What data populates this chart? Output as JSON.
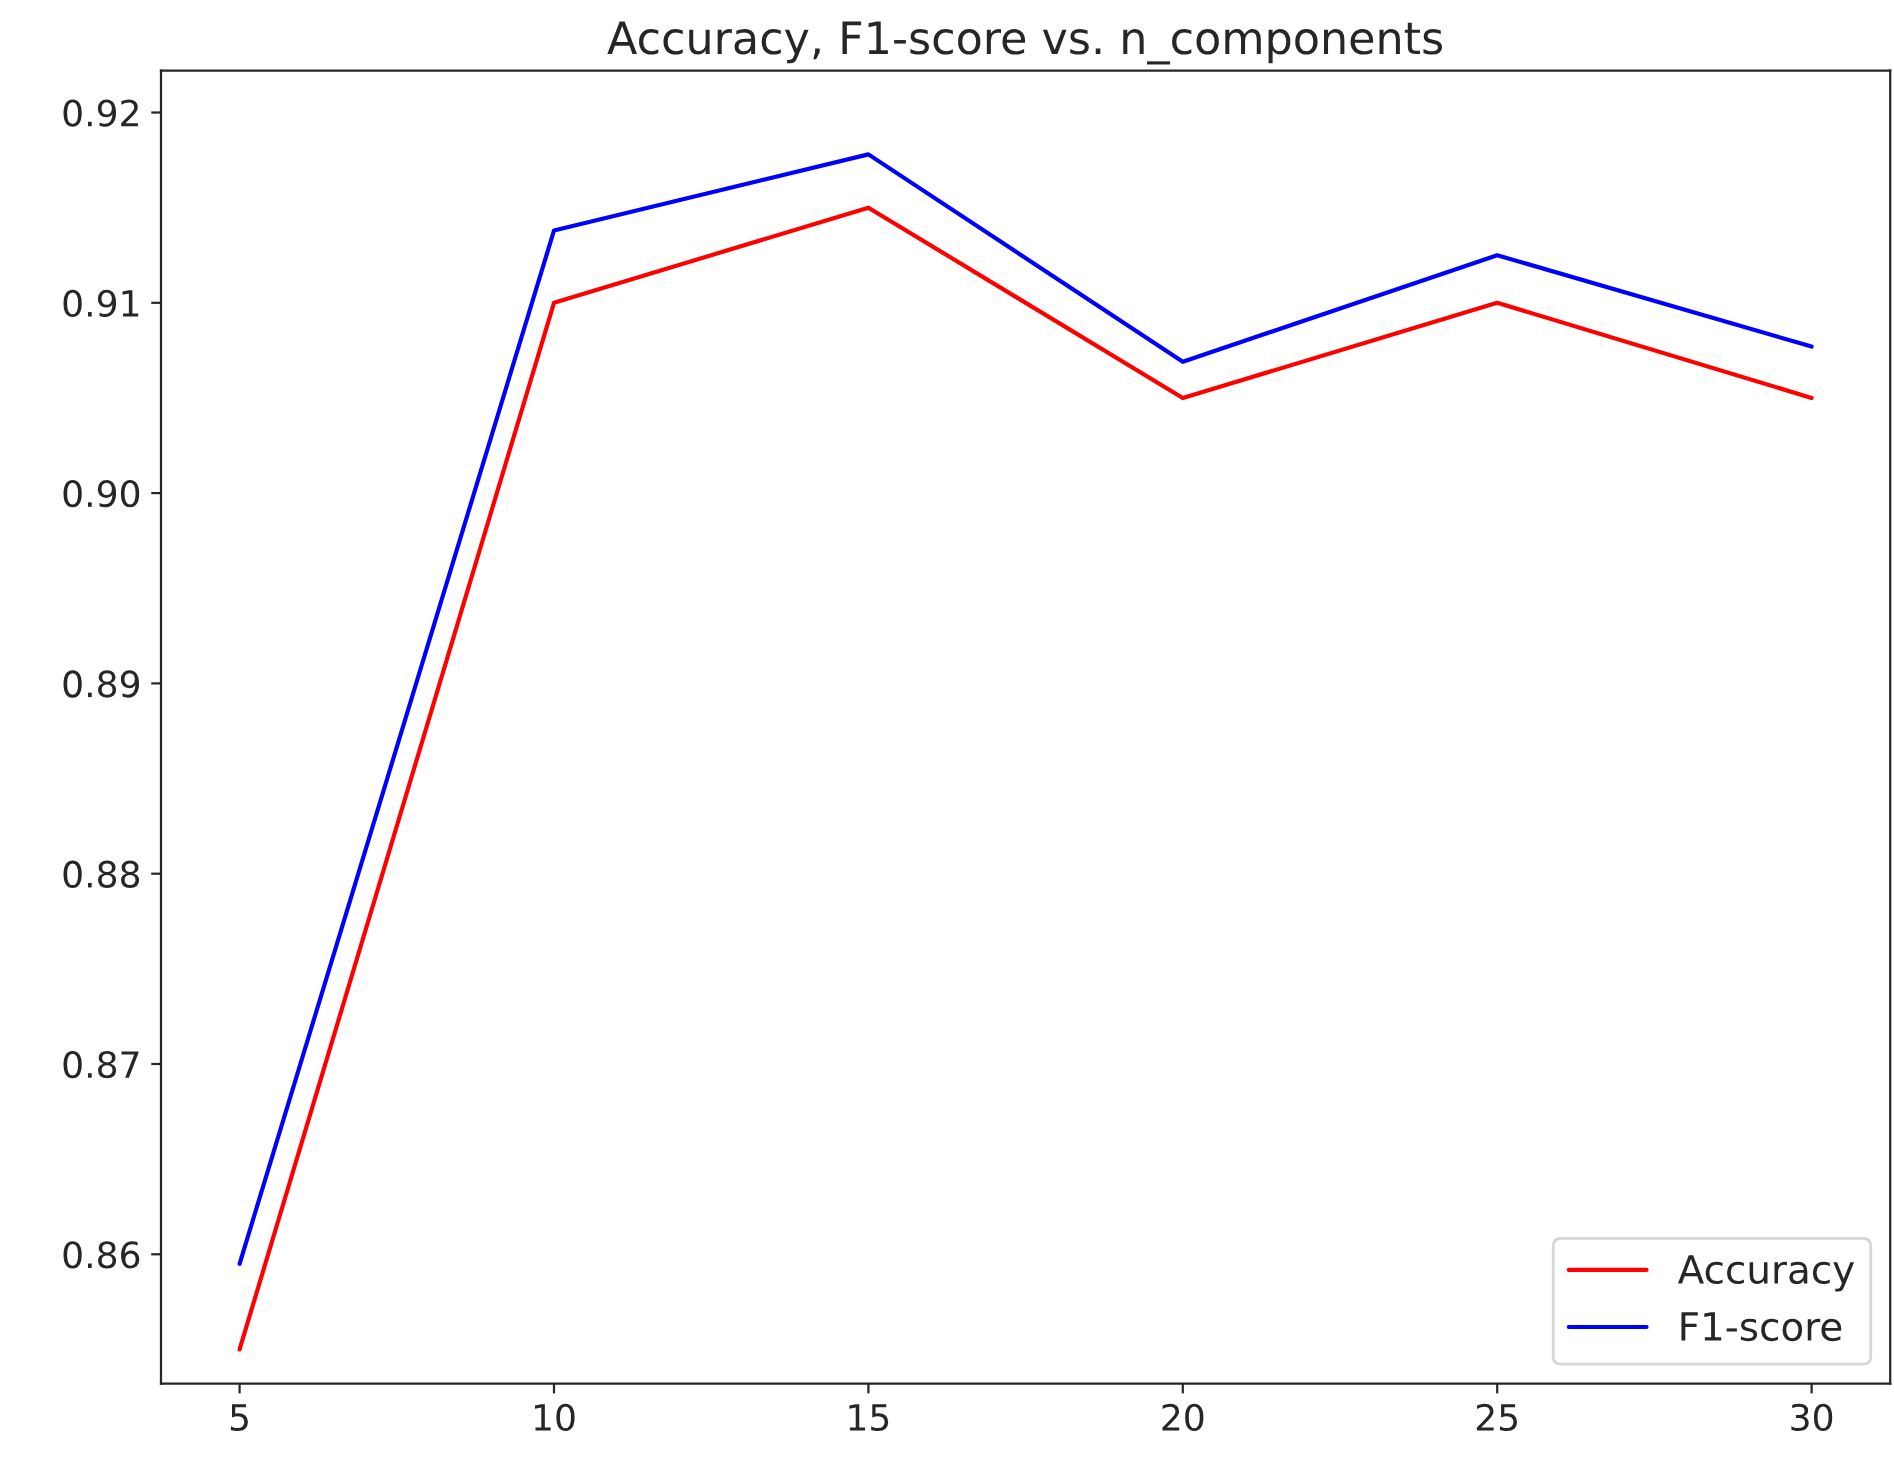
{
  "chart_data": {
    "type": "line",
    "title": "Accuracy, F1-score vs. n_components",
    "x": [
      5,
      10,
      15,
      20,
      25,
      30
    ],
    "series": [
      {
        "name": "Accuracy",
        "color": "#ff0000",
        "values": [
          0.855,
          0.91,
          0.915,
          0.905,
          0.91,
          0.905
        ]
      },
      {
        "name": "F1-score",
        "color": "#0000ff",
        "values": [
          0.8595,
          0.9138,
          0.9178,
          0.9069,
          0.9125,
          0.9077
        ]
      }
    ],
    "xlim": [
      3.75,
      31.25
    ],
    "xticks": [
      5,
      10,
      15,
      20,
      25,
      30
    ],
    "ylim": [
      0.8532,
      0.9222
    ],
    "yticks": [
      0.86,
      0.87,
      0.88,
      0.89,
      {
        "value": 0.9,
        "label": "0.90"
      },
      0.91,
      0.92
    ],
    "grid": false,
    "legend": "lower right"
  }
}
